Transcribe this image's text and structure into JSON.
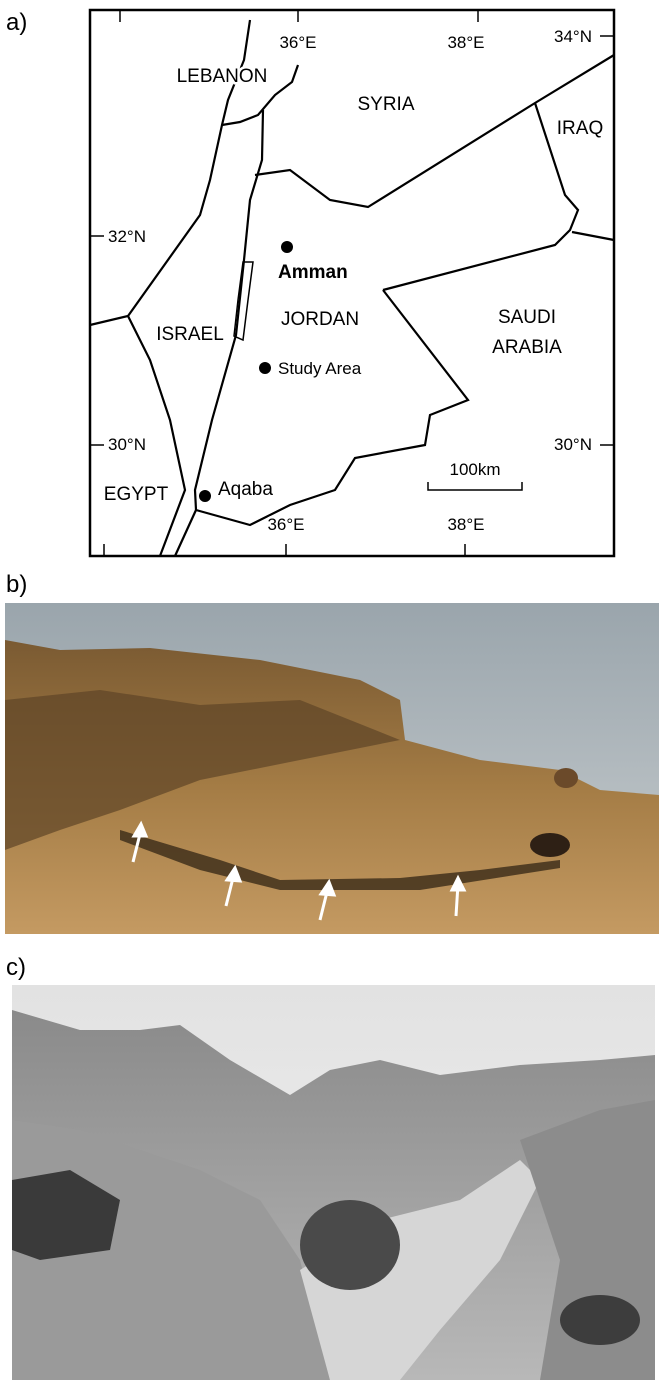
{
  "panels": [
    {
      "label": "a)"
    },
    {
      "label": "b)"
    },
    {
      "label": "c)"
    }
  ],
  "map": {
    "countries": [
      "LEBANON",
      "SYRIA",
      "IRAQ",
      "ISRAEL",
      "JORDAN",
      [
        "SAUDI",
        "ARABIA"
      ],
      "EGYPT"
    ],
    "places": [
      "Amman",
      "Study Area",
      "Aqaba"
    ],
    "graticule": [
      "36°E",
      "38°E",
      "34°N",
      "32°N",
      "30°N",
      "30°N",
      "36°E",
      "38°E"
    ],
    "scale": "100km"
  }
}
